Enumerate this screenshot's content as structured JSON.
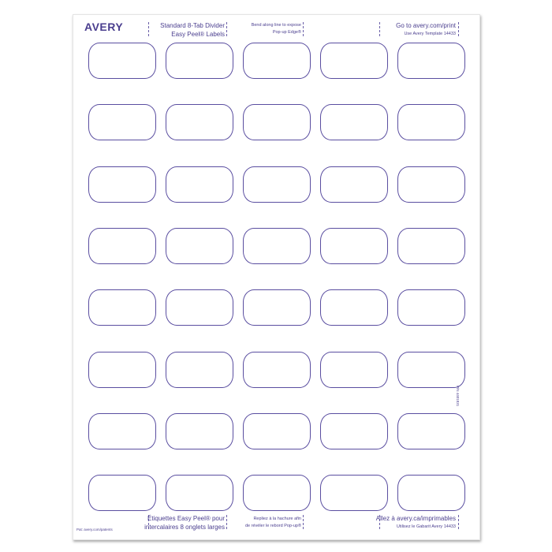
{
  "brand": "AVERY",
  "header": {
    "title_line1": "Standard 8-Tab Divider",
    "title_line2": "Easy Peel® Labels",
    "bend_line1": "Bend along line to expose",
    "bend_line2": "Pop-up Edge®",
    "url": "Go to avery.com/print",
    "template": "Use Avery Template 14433"
  },
  "footer": {
    "title_line1": "Étiquettes Easy Peel® pour",
    "title_line2": "intercalaires 8 onglets larges",
    "bend_line1": "Repliez à la hachure afin",
    "bend_line2": "de révéler le rebord Pop-up®",
    "url": "Allez à avery.ca/imprimables",
    "template": "Utilisez le Gabarit Avery 14433",
    "patents": "Pat: avery.com/patents"
  },
  "side_code": "P/N 4401831",
  "grid": {
    "rows": 8,
    "columns": 5
  },
  "colors": {
    "ink": "#4b3f8f",
    "label_outline": "#5a4ea0"
  }
}
